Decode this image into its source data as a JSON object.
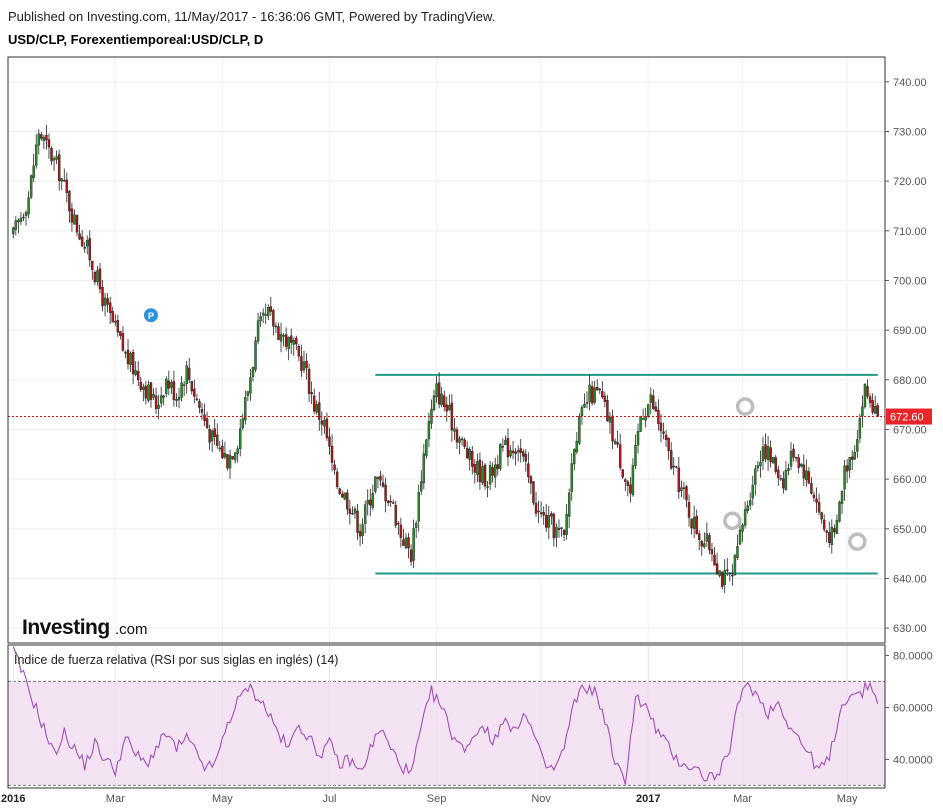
{
  "header": {
    "published": "Published on Investing.com, 11/May/2017 - 16:36:06 GMT, Powered by TradingView.",
    "symbol": "USD/CLP, Forexentiemporeal:USD/CLP, D"
  },
  "logo": {
    "brand": "Investing",
    "suffix": ".com"
  },
  "colors": {
    "up": "#2a8a2a",
    "down": "#a51a1a",
    "channel": "#1f9b85",
    "rsi_line": "#a14fb5",
    "rsi_band": "#f3e3f3",
    "last_price_bg": "#e8262a",
    "marker": "#2a90e0"
  },
  "chart_data": [
    {
      "type": "candlestick",
      "title": "USD/CLP, Forexentiemporeal:USD/CLP, D",
      "ylim": [
        627,
        745
      ],
      "yticks": [
        "740.00",
        "730.00",
        "720.00",
        "710.00",
        "700.00",
        "690.00",
        "680.00",
        "670.00",
        "660.00",
        "650.00",
        "640.00",
        "630.00"
      ],
      "ytick_values": [
        740,
        730,
        720,
        710,
        700,
        690,
        680,
        670,
        660,
        650,
        640,
        630
      ],
      "xticks": [
        "2016",
        "Mar",
        "May",
        "Jul",
        "Sep",
        "Nov",
        "2017",
        "Mar",
        "May"
      ],
      "xtick_index": [
        0,
        40,
        82,
        124,
        166,
        207,
        249,
        286,
        327
      ],
      "num_candles": 340,
      "close_anchors": [
        [
          0,
          709
        ],
        [
          6,
          717
        ],
        [
          10,
          730
        ],
        [
          14,
          726
        ],
        [
          18,
          722
        ],
        [
          24,
          712
        ],
        [
          30,
          705
        ],
        [
          36,
          695
        ],
        [
          44,
          685
        ],
        [
          50,
          680
        ],
        [
          56,
          675
        ],
        [
          60,
          680
        ],
        [
          64,
          677
        ],
        [
          68,
          682
        ],
        [
          72,
          676
        ],
        [
          78,
          668
        ],
        [
          84,
          664
        ],
        [
          88,
          668
        ],
        [
          92,
          678
        ],
        [
          96,
          690
        ],
        [
          100,
          693
        ],
        [
          104,
          690
        ],
        [
          110,
          686
        ],
        [
          114,
          683
        ],
        [
          118,
          675
        ],
        [
          122,
          671
        ],
        [
          126,
          660
        ],
        [
          132,
          655
        ],
        [
          136,
          650
        ],
        [
          142,
          660
        ],
        [
          148,
          656
        ],
        [
          152,
          649
        ],
        [
          156,
          645
        ],
        [
          162,
          669
        ],
        [
          166,
          678
        ],
        [
          170,
          674
        ],
        [
          176,
          667
        ],
        [
          180,
          663
        ],
        [
          186,
          660
        ],
        [
          192,
          666
        ],
        [
          198,
          667
        ],
        [
          202,
          660
        ],
        [
          206,
          653
        ],
        [
          212,
          650
        ],
        [
          216,
          648
        ],
        [
          220,
          668
        ],
        [
          226,
          677
        ],
        [
          230,
          677
        ],
        [
          234,
          671
        ],
        [
          238,
          664
        ],
        [
          242,
          657
        ],
        [
          246,
          673
        ],
        [
          250,
          676
        ],
        [
          254,
          670
        ],
        [
          258,
          663
        ],
        [
          262,
          658
        ],
        [
          266,
          652
        ],
        [
          270,
          648
        ],
        [
          274,
          646
        ],
        [
          278,
          640
        ],
        [
          282,
          640
        ],
        [
          286,
          651
        ],
        [
          290,
          660
        ],
        [
          294,
          667
        ],
        [
          298,
          663
        ],
        [
          302,
          660
        ],
        [
          306,
          666
        ],
        [
          310,
          662
        ],
        [
          314,
          657
        ],
        [
          318,
          650
        ],
        [
          322,
          648
        ],
        [
          326,
          662
        ],
        [
          330,
          667
        ],
        [
          334,
          678
        ],
        [
          339,
          672.6
        ]
      ],
      "last_price": "672.60",
      "last_price_value": 672.6,
      "channel_top": 681,
      "channel_bottom": 641,
      "channel_from_index": 142,
      "channel_to_index": 339,
      "pattern_markers": [
        {
          "index": 287,
          "value": 673,
          "direction": "down"
        },
        {
          "index": 282,
          "value": 650,
          "direction": "down"
        },
        {
          "index": 331,
          "value": 649,
          "direction": "up"
        }
      ],
      "event_marker": {
        "label": "P",
        "index": 54,
        "value": 693
      }
    },
    {
      "type": "line",
      "title": "Índice de fuerza relativa (RSI por sus siglas en inglés) (14)",
      "ylim": [
        29,
        84
      ],
      "yticks": [
        "80.0000",
        "60.0000",
        "40.0000"
      ],
      "ytick_values": [
        80,
        60,
        40
      ],
      "band": [
        30,
        70
      ],
      "anchors": [
        [
          0,
          82
        ],
        [
          4,
          72
        ],
        [
          8,
          62
        ],
        [
          12,
          52
        ],
        [
          16,
          42
        ],
        [
          20,
          50
        ],
        [
          24,
          44
        ],
        [
          28,
          38
        ],
        [
          32,
          46
        ],
        [
          36,
          40
        ],
        [
          40,
          36
        ],
        [
          44,
          48
        ],
        [
          48,
          42
        ],
        [
          52,
          38
        ],
        [
          56,
          44
        ],
        [
          60,
          50
        ],
        [
          64,
          44
        ],
        [
          68,
          48
        ],
        [
          72,
          42
        ],
        [
          76,
          36
        ],
        [
          80,
          40
        ],
        [
          84,
          54
        ],
        [
          88,
          62
        ],
        [
          92,
          68
        ],
        [
          96,
          64
        ],
        [
          100,
          58
        ],
        [
          104,
          50
        ],
        [
          108,
          44
        ],
        [
          112,
          54
        ],
        [
          116,
          48
        ],
        [
          120,
          42
        ],
        [
          124,
          46
        ],
        [
          128,
          38
        ],
        [
          132,
          40
        ],
        [
          136,
          35
        ],
        [
          140,
          44
        ],
        [
          144,
          52
        ],
        [
          148,
          44
        ],
        [
          152,
          38
        ],
        [
          156,
          34
        ],
        [
          160,
          52
        ],
        [
          164,
          66
        ],
        [
          168,
          60
        ],
        [
          172,
          50
        ],
        [
          176,
          44
        ],
        [
          180,
          48
        ],
        [
          184,
          54
        ],
        [
          188,
          46
        ],
        [
          192,
          56
        ],
        [
          196,
          50
        ],
        [
          200,
          58
        ],
        [
          204,
          50
        ],
        [
          208,
          38
        ],
        [
          212,
          36
        ],
        [
          216,
          44
        ],
        [
          220,
          62
        ],
        [
          224,
          68
        ],
        [
          228,
          66
        ],
        [
          232,
          56
        ],
        [
          236,
          38
        ],
        [
          240,
          32
        ],
        [
          244,
          64
        ],
        [
          248,
          60
        ],
        [
          252,
          52
        ],
        [
          256,
          46
        ],
        [
          260,
          40
        ],
        [
          264,
          38
        ],
        [
          268,
          36
        ],
        [
          272,
          33
        ],
        [
          276,
          34
        ],
        [
          280,
          40
        ],
        [
          284,
          60
        ],
        [
          288,
          70
        ],
        [
          292,
          64
        ],
        [
          296,
          58
        ],
        [
          300,
          62
        ],
        [
          304,
          54
        ],
        [
          308,
          48
        ],
        [
          312,
          42
        ],
        [
          316,
          36
        ],
        [
          320,
          40
        ],
        [
          324,
          58
        ],
        [
          328,
          66
        ],
        [
          332,
          64
        ],
        [
          336,
          70
        ],
        [
          339,
          61
        ]
      ]
    }
  ]
}
